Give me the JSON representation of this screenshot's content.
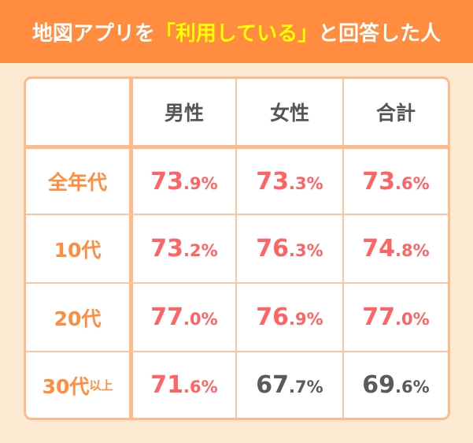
{
  "title": {
    "pre": "地図アプリを",
    "highlight": "「利用している」",
    "post": "と回答した人"
  },
  "colors": {
    "header": "#FF8C3F",
    "highlight": "#FFFF00",
    "above": "#FF6464",
    "below": "#5A5A5A"
  },
  "chart_data": {
    "type": "table",
    "title": "地図アプリを「利用している」と回答した人",
    "columns": [
      "男性",
      "女性",
      "合計"
    ],
    "rows": [
      {
        "label": "全年代",
        "suffix": "",
        "values": [
          {
            "i": "73",
            "d": ".9%"
          },
          {
            "i": "73",
            "d": ".3%"
          },
          {
            "i": "73",
            "d": ".6%"
          }
        ],
        "num": [
          73.9,
          73.3,
          73.6
        ]
      },
      {
        "label": "10代",
        "suffix": "",
        "values": [
          {
            "i": "73",
            "d": ".2%"
          },
          {
            "i": "76",
            "d": ".3%"
          },
          {
            "i": "74",
            "d": ".8%"
          }
        ],
        "num": [
          73.2,
          76.3,
          74.8
        ]
      },
      {
        "label": "20代",
        "suffix": "",
        "values": [
          {
            "i": "77",
            "d": ".0%"
          },
          {
            "i": "76",
            "d": ".9%"
          },
          {
            "i": "77",
            "d": ".0%"
          }
        ],
        "num": [
          77.0,
          76.9,
          77.0
        ]
      },
      {
        "label": "30代",
        "suffix": "以上",
        "values": [
          {
            "i": "71",
            "d": ".6%"
          },
          {
            "i": "67",
            "d": ".7%"
          },
          {
            "i": "69",
            "d": ".6%"
          }
        ],
        "num": [
          71.6,
          67.7,
          69.6
        ]
      }
    ]
  }
}
